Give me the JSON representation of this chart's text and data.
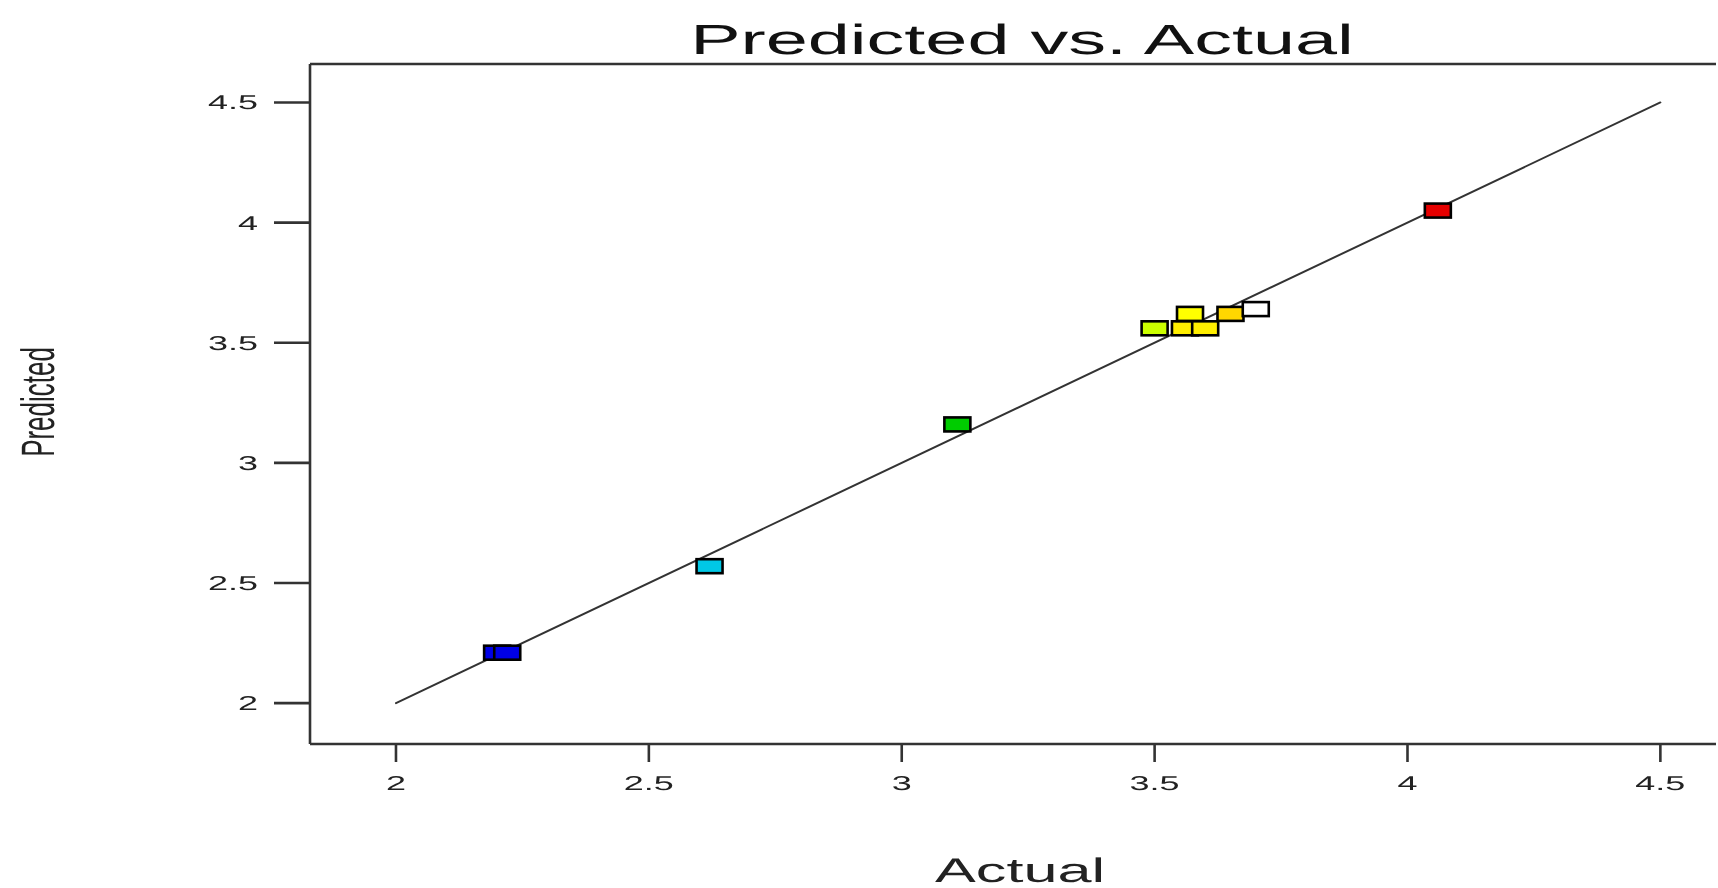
{
  "chart_data": {
    "type": "scatter",
    "title": "Predicted vs. Actual",
    "xlabel": "Actual",
    "ylabel": "Predicted",
    "xlim": [
      1.83,
      4.61
    ],
    "ylim": [
      1.83,
      4.66
    ],
    "xticks": [
      2,
      2.5,
      3,
      3.5,
      4,
      4.5
    ],
    "yticks": [
      2,
      2.5,
      3,
      3.5,
      4,
      4.5
    ],
    "marker": "square",
    "series": [
      {
        "x": [
          2.2,
          2.22,
          2.62,
          3.11,
          3.5,
          3.56,
          3.57,
          3.6,
          3.65,
          3.7,
          4.06
        ],
        "values": [
          2.21,
          2.21,
          2.57,
          3.16,
          3.56,
          3.56,
          3.62,
          3.56,
          3.62,
          3.64,
          4.05
        ],
        "colors": [
          "#0000e6",
          "#0000e6",
          "#00c8e6",
          "#00cc00",
          "#ccff00",
          "#ffee00",
          "#ffff00",
          "#ffee00",
          "#ffd700",
          "#ffffff",
          "#e60000"
        ]
      },
      {
        "type": "line",
        "marker": "none",
        "x": [
          2,
          4.5
        ],
        "values": [
          2,
          4.5
        ],
        "color": "#333333"
      }
    ]
  }
}
